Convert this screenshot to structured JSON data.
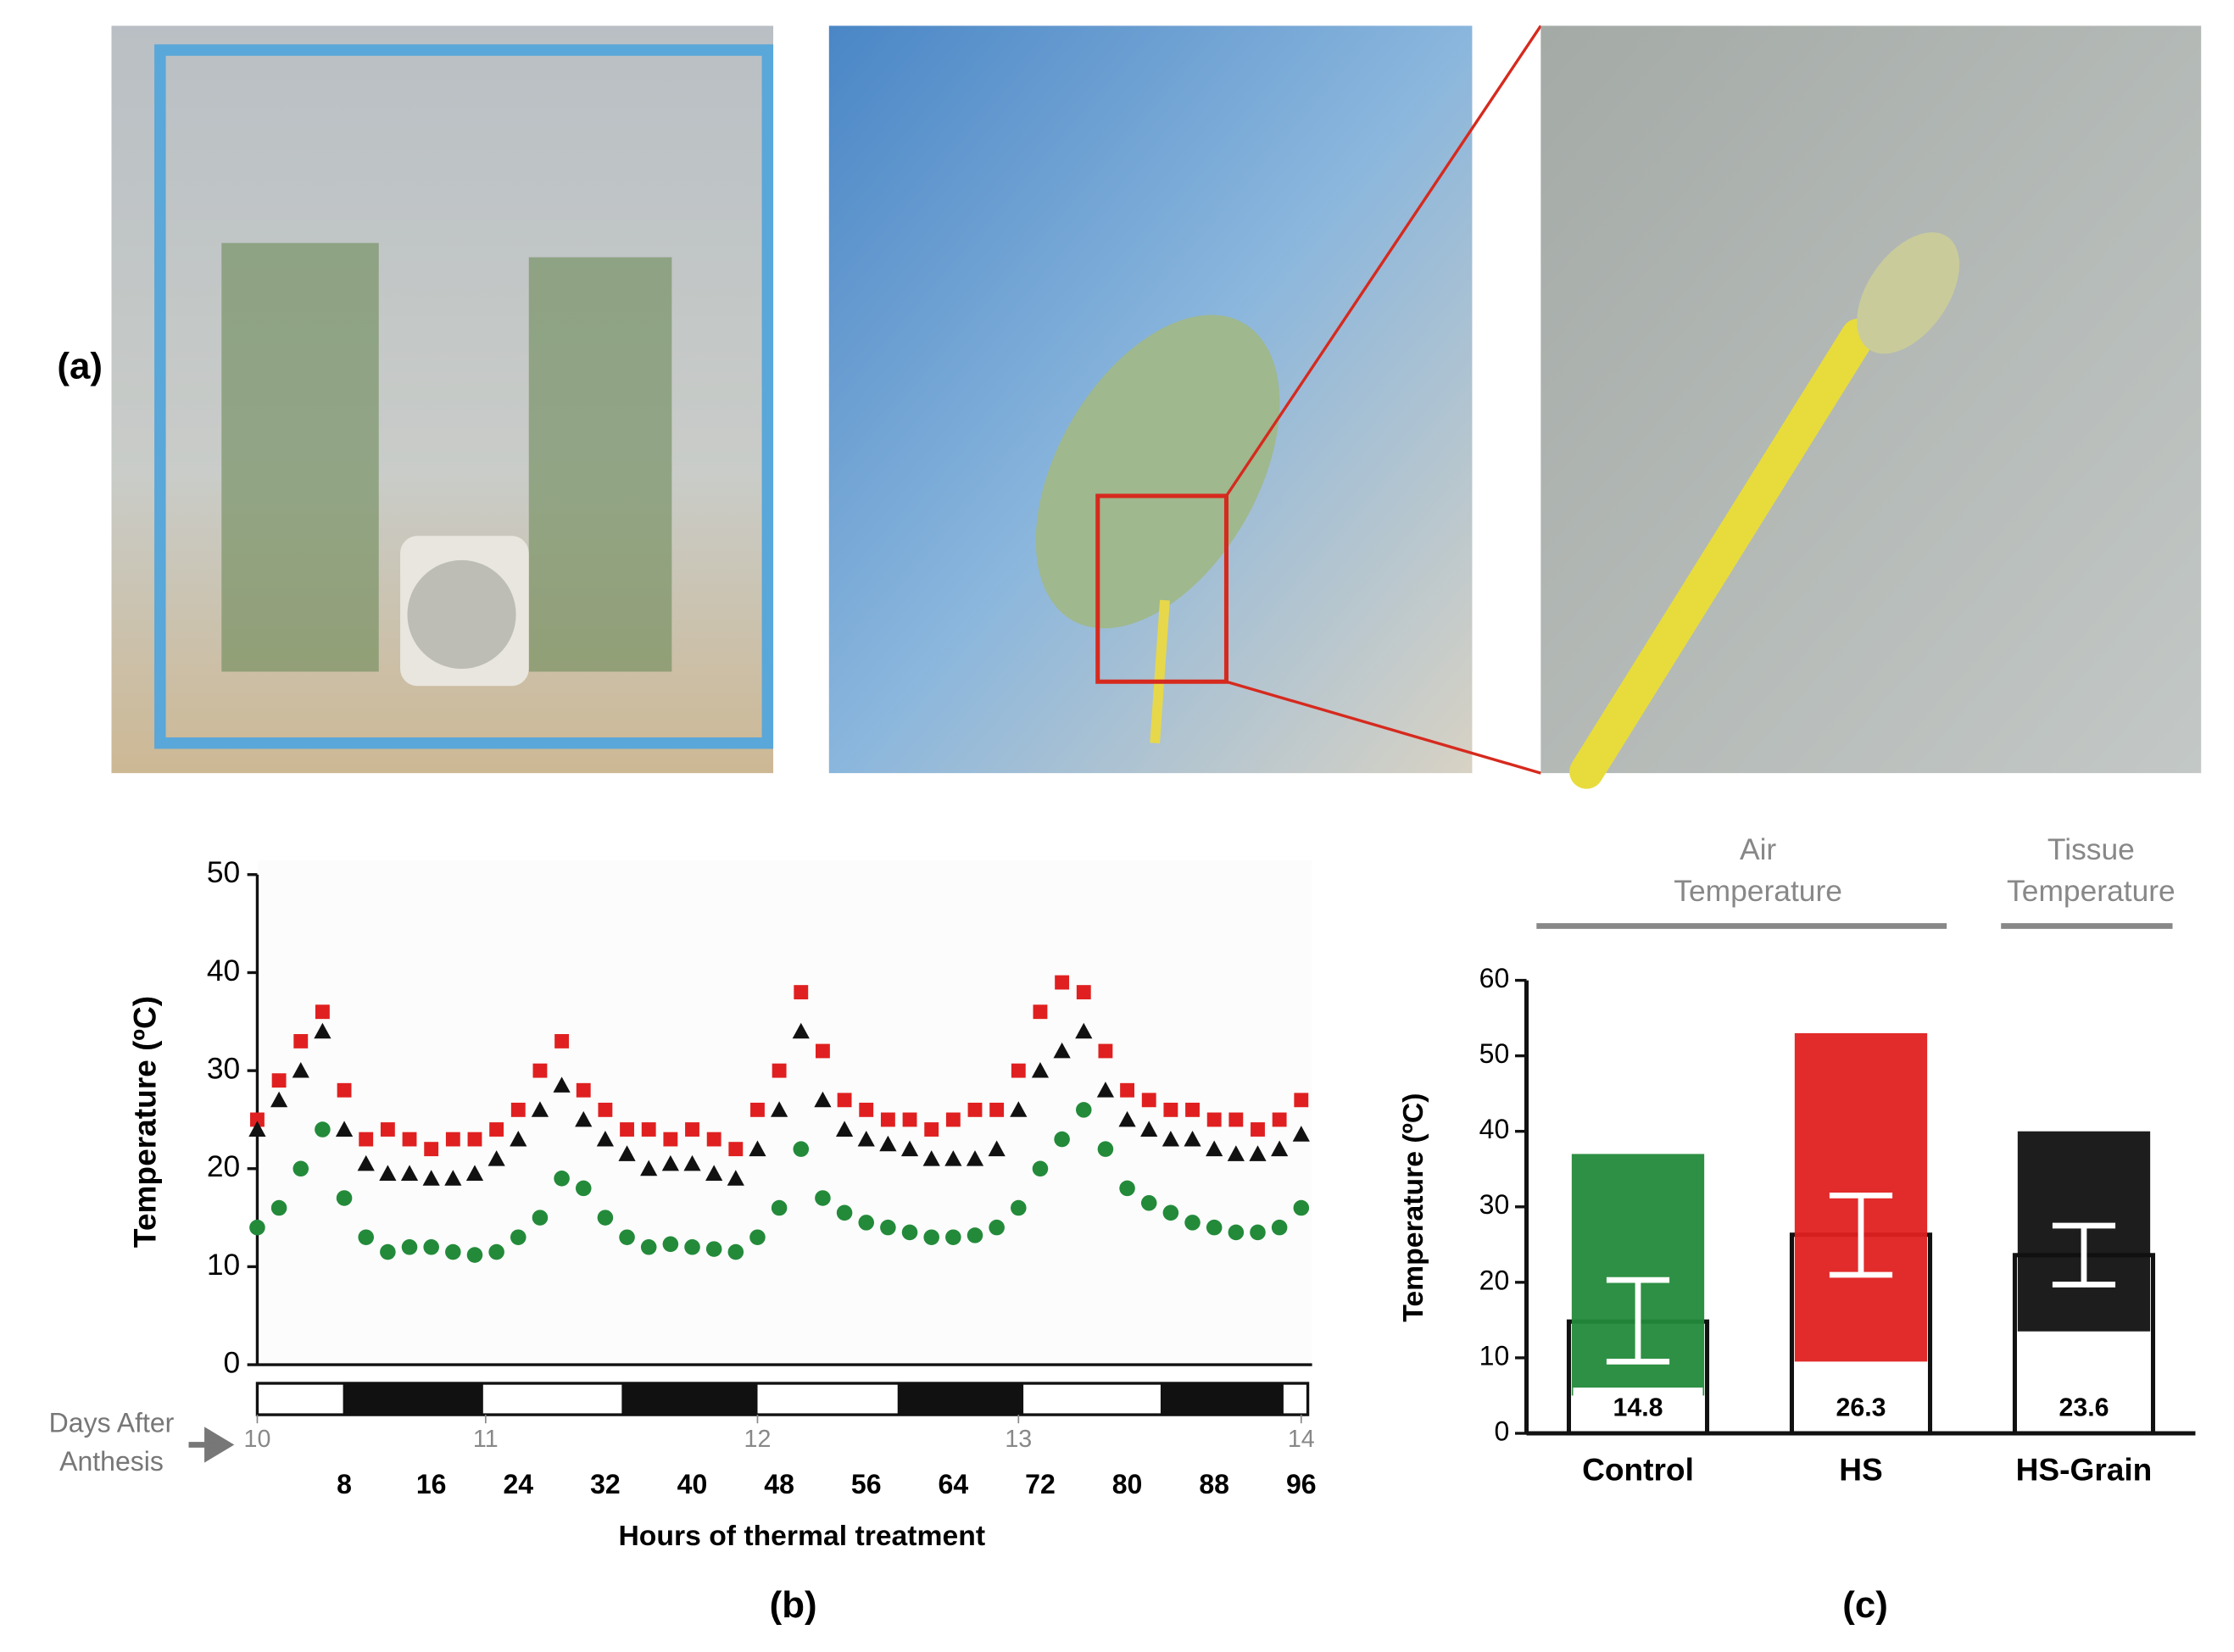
{
  "figure": {
    "panel_labels": [
      "(a)",
      "(b)",
      "(c)"
    ]
  },
  "chart_data": [
    {
      "type": "scatter",
      "ylabel": "Temperature (ºC)",
      "xlabel": "Hours of thermal treatment",
      "annotation": "*",
      "x2label": [
        "Days After",
        "Anthesis"
      ],
      "xlim": [
        0,
        97
      ],
      "ylim": [
        0,
        50
      ],
      "xticks": [
        8,
        16,
        24,
        32,
        40,
        48,
        56,
        64,
        72,
        80,
        88,
        96
      ],
      "yticks": [
        0,
        10,
        20,
        30,
        40,
        50
      ],
      "x2ticks": [
        {
          "value": 0,
          "label": "10"
        },
        {
          "value": 21,
          "label": "11"
        },
        {
          "value": 46,
          "label": "12"
        },
        {
          "value": 70,
          "label": "13"
        },
        {
          "value": 96,
          "label": "14"
        }
      ],
      "x": [
        0,
        2,
        4,
        6,
        8,
        10,
        12,
        14,
        16,
        18,
        20,
        22,
        24,
        26,
        28,
        30,
        32,
        34,
        36,
        38,
        40,
        42,
        44,
        46,
        48,
        50,
        52,
        54,
        56,
        58,
        60,
        62,
        64,
        66,
        68,
        70,
        72,
        74,
        76,
        78,
        80,
        82,
        84,
        86,
        88,
        90,
        92,
        94,
        96
      ],
      "series": [
        {
          "color": "#e02020",
          "marker": "square",
          "values": [
            25,
            29,
            33,
            36,
            28,
            23,
            24,
            23,
            22,
            23,
            23,
            24,
            26,
            30,
            33,
            28,
            26,
            24,
            24,
            23,
            24,
            23,
            22,
            26,
            30,
            38,
            32,
            27,
            26,
            25,
            25,
            24,
            25,
            26,
            26,
            30,
            36,
            39,
            38,
            32,
            28,
            27,
            26,
            26,
            25,
            25,
            24,
            25,
            27
          ]
        },
        {
          "color": "#111111",
          "marker": "triangle",
          "values": [
            24,
            27,
            30,
            34,
            24,
            20.5,
            19.5,
            19.5,
            19,
            19,
            19.5,
            21,
            23,
            26,
            28.5,
            25,
            23,
            21.5,
            20,
            20.5,
            20.5,
            19.5,
            19,
            22,
            26,
            34,
            27,
            24,
            23,
            22.5,
            22,
            21,
            21,
            21,
            22,
            26,
            30,
            32,
            34,
            28,
            25,
            24,
            23,
            23,
            22,
            21.5,
            21.5,
            22,
            23.5
          ]
        },
        {
          "color": "#238a3a",
          "marker": "circle",
          "values": [
            14,
            16,
            20,
            24,
            17,
            13,
            11.5,
            12,
            12,
            11.5,
            11.2,
            11.5,
            13,
            15,
            19,
            18,
            15,
            13,
            12,
            12.3,
            12,
            11.8,
            11.5,
            13,
            16,
            22,
            17,
            15.5,
            14.5,
            14,
            13.5,
            13,
            13,
            13.2,
            14,
            16,
            20,
            23,
            26,
            22,
            18,
            16.5,
            15.5,
            14.5,
            14,
            13.5,
            13.5,
            14,
            16
          ]
        }
      ]
    },
    {
      "type": "bar",
      "ylabel": "Temperature (ºC)",
      "group_labels": [
        [
          "Air",
          "Temperature"
        ],
        [
          "Tissue",
          "Temperature"
        ]
      ],
      "categories": [
        "Control",
        "HS",
        "HS-Grain"
      ],
      "values": [
        14.8,
        26.3,
        23.6
      ],
      "error_low": [
        9.5,
        21,
        19.7
      ],
      "error_high": [
        20.3,
        31.5,
        27.5
      ],
      "min": [
        5,
        9.5,
        13.5
      ],
      "max": [
        37,
        53,
        40
      ],
      "colors": [
        "#238a3a",
        "#e02020",
        "#111111"
      ],
      "ylim": [
        0,
        60
      ],
      "yticks": [
        0,
        10,
        20,
        30,
        40,
        50,
        60
      ]
    }
  ]
}
